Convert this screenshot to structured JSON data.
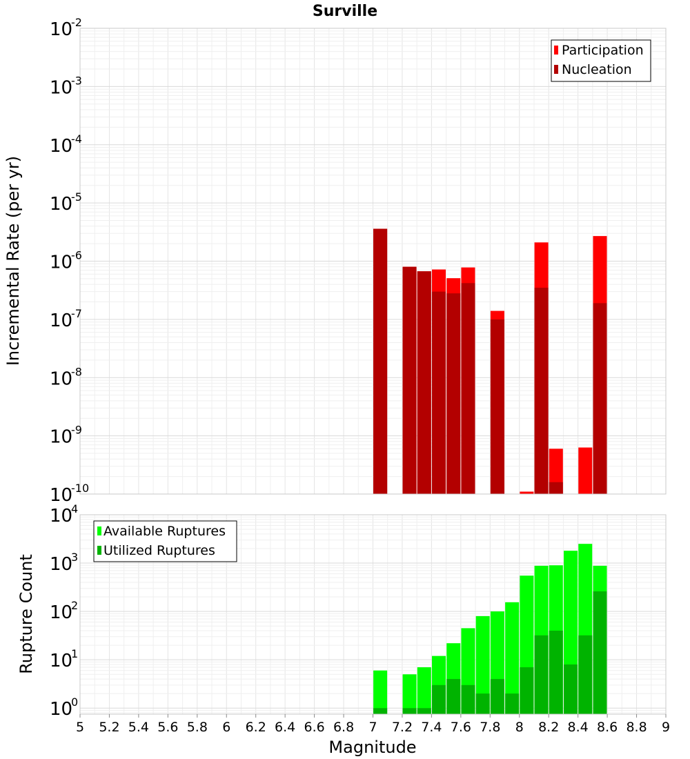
{
  "title": "Surville",
  "chart_data": [
    {
      "type": "bar",
      "yscale": "log",
      "ylabel": "Incremental Rate (per yr)",
      "xlim": [
        5,
        9
      ],
      "ylim": [
        1e-10,
        0.01
      ],
      "ytick_exponents": [
        -2,
        -3,
        -4,
        -5,
        -6,
        -7,
        -8,
        -9,
        -10
      ],
      "legend_position": "top-right",
      "grid": true,
      "series": [
        {
          "name": "Participation",
          "color": "#ff0000",
          "x": [
            7.05,
            7.25,
            7.35,
            7.45,
            7.55,
            7.65,
            7.85,
            8.05,
            8.15,
            8.25,
            8.45,
            8.55
          ],
          "values": [
            3.6e-06,
            8e-07,
            6.7e-07,
            7.2e-07,
            5.1e-07,
            7.8e-07,
            1.4e-07,
            1.1e-10,
            2.1e-06,
            6e-10,
            6.3e-10,
            2.7e-06
          ]
        },
        {
          "name": "Nucleation",
          "color": "#b30000",
          "x": [
            7.05,
            7.25,
            7.35,
            7.45,
            7.55,
            7.65,
            7.85,
            8.15,
            8.25,
            8.55
          ],
          "values": [
            3.6e-06,
            8e-07,
            6.7e-07,
            3e-07,
            2.8e-07,
            4.2e-07,
            1e-07,
            3.5e-07,
            1.6e-10,
            1.9e-07
          ]
        }
      ]
    },
    {
      "type": "bar",
      "yscale": "log",
      "xlabel": "Magnitude",
      "ylabel": "Rupture Count",
      "xlim": [
        5,
        9
      ],
      "ylim": [
        0.75,
        10000
      ],
      "ytick_exponents": [
        4,
        3,
        2,
        1,
        0
      ],
      "xticks": [
        "5",
        "5.2",
        "5.4",
        "5.6",
        "5.8",
        "6",
        "6.2",
        "6.4",
        "6.6",
        "6.8",
        "7",
        "7.2",
        "7.4",
        "7.6",
        "7.8",
        "8",
        "8.2",
        "8.4",
        "8.6",
        "8.8",
        "9"
      ],
      "legend_position": "top-left",
      "grid": true,
      "series": [
        {
          "name": "Available Ruptures",
          "color": "#00ff00",
          "x": [
            7.05,
            7.25,
            7.35,
            7.45,
            7.55,
            7.65,
            7.75,
            7.85,
            7.95,
            8.05,
            8.15,
            8.25,
            8.35,
            8.45,
            8.55
          ],
          "values": [
            6,
            5,
            7,
            12,
            22,
            45,
            80,
            100,
            155,
            550,
            880,
            900,
            1800,
            2500,
            880
          ]
        },
        {
          "name": "Utilized Ruptures",
          "color": "#00b300",
          "x": [
            7.05,
            7.25,
            7.35,
            7.45,
            7.55,
            7.65,
            7.75,
            7.85,
            7.95,
            8.05,
            8.15,
            8.25,
            8.35,
            8.45,
            8.55
          ],
          "values": [
            1,
            1,
            1,
            3,
            4,
            3,
            2,
            4,
            2,
            7,
            32,
            40,
            8,
            32,
            260
          ]
        }
      ]
    }
  ]
}
